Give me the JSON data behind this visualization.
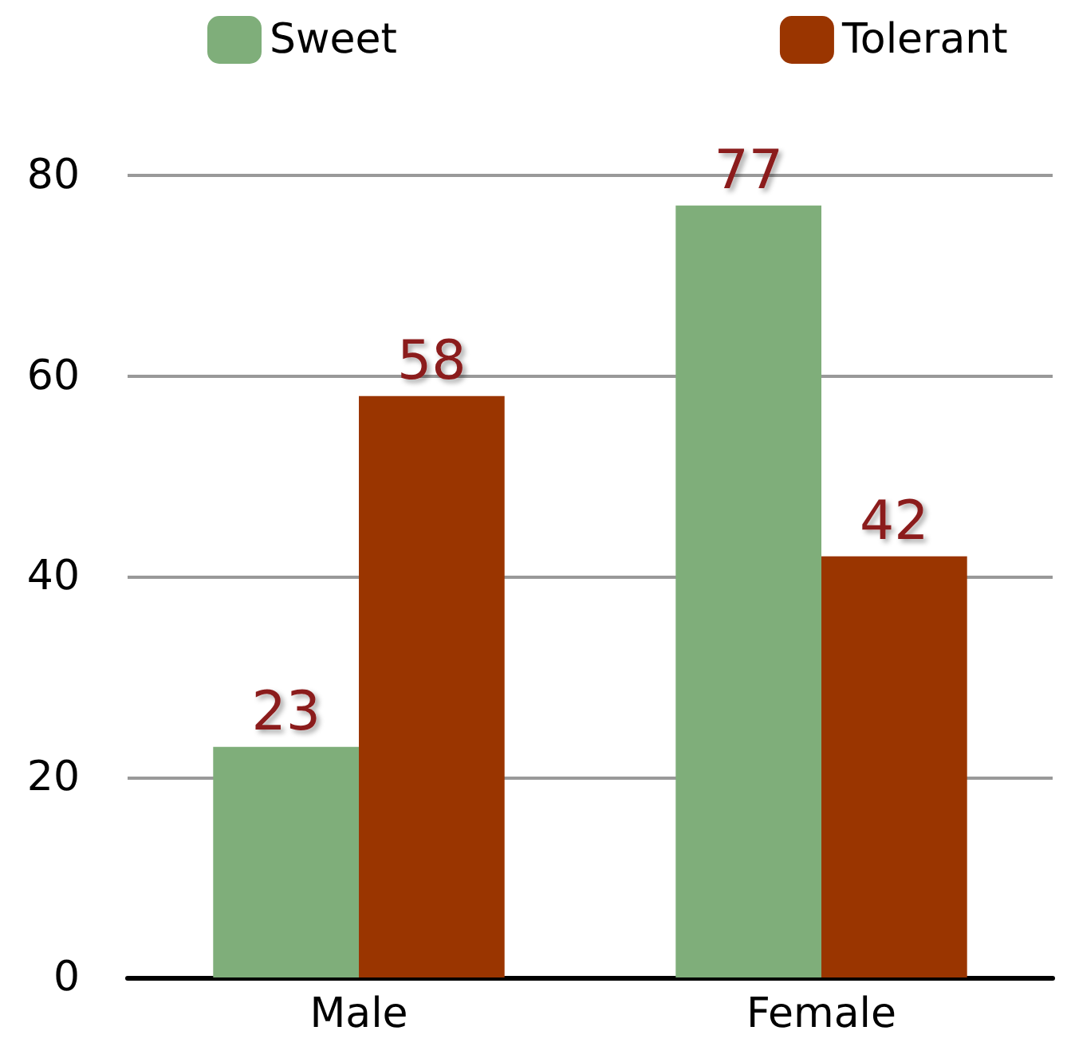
{
  "chart_data": {
    "type": "bar",
    "categories": [
      "Male",
      "Female"
    ],
    "series": [
      {
        "name": "Sweet",
        "color": "#7fae7a",
        "values": [
          23,
          77
        ]
      },
      {
        "name": "Tolerant",
        "color": "#9a3500",
        "values": [
          58,
          42
        ]
      }
    ],
    "ylim": [
      0,
      80
    ],
    "yticks": [
      0,
      20,
      40,
      60,
      80
    ],
    "grid": "y",
    "legend": "top",
    "data_labels": true
  }
}
